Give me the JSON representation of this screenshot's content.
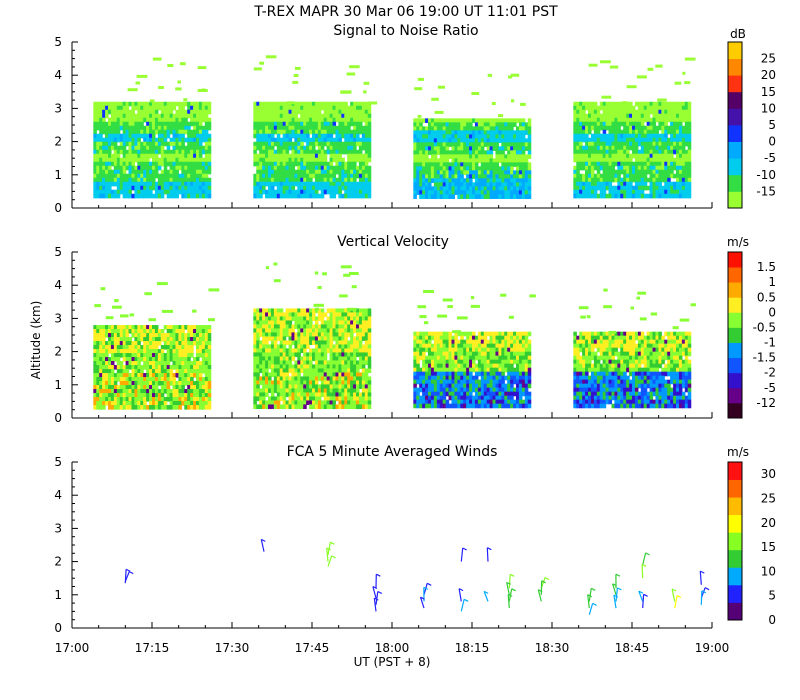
{
  "header": {
    "title": "T-REX   MAPR 30 Mar 06   19:00 UT   11:01   PST"
  },
  "x_axis": {
    "ticks": [
      "17:00",
      "17:15",
      "17:30",
      "17:45",
      "18:00",
      "18:15",
      "18:30",
      "18:45",
      "19:00"
    ],
    "label": "UT  (PST + 8)",
    "range_min": [
      1020,
      1140
    ]
  },
  "y_label": "Altitude (km)",
  "chart_data": [
    {
      "id": "snr",
      "type": "heatmap",
      "title": "Signal to Noise Ratio",
      "unit": "dB",
      "ylim": [
        0,
        5
      ],
      "yticks": [
        "0",
        "1",
        "2",
        "3",
        "4",
        "5"
      ],
      "colorbar": {
        "labels": [
          "-15",
          "-10",
          "-5",
          "0",
          "5",
          "10",
          "15",
          "20",
          "25"
        ],
        "colors": [
          "#99ff33",
          "#33dd44",
          "#00ccee",
          "#00aaff",
          "#1133ff",
          "#4411aa",
          "#550066",
          "#ff3311",
          "#ff8800",
          "#ffcc00"
        ]
      },
      "data_blocks_min": [
        [
          1024,
          1046
        ],
        [
          1054,
          1076
        ],
        [
          1084,
          1106
        ],
        [
          1114,
          1136
        ]
      ]
    },
    {
      "id": "vv",
      "type": "heatmap",
      "title": "Vertical Velocity",
      "unit": "m/s",
      "ylim": [
        0,
        5
      ],
      "yticks": [
        "0",
        "1",
        "2",
        "3",
        "4",
        "5"
      ],
      "colorbar": {
        "labels": [
          "-12",
          "-5",
          "-2",
          "-1.5",
          "-1",
          "-0.5",
          "0",
          "0.5",
          "1",
          "1.5"
        ],
        "colors": [
          "#330022",
          "#660088",
          "#3311cc",
          "#1155ff",
          "#0099ff",
          "#33cc33",
          "#88ff33",
          "#ffee22",
          "#ffaa00",
          "#ff6600",
          "#ff1100"
        ]
      },
      "data_blocks_min": [
        [
          1024,
          1046
        ],
        [
          1054,
          1076
        ],
        [
          1084,
          1106
        ],
        [
          1114,
          1136
        ]
      ]
    },
    {
      "id": "winds",
      "type": "scatter",
      "title": "FCA 5 Minute Averaged Winds",
      "unit": "m/s",
      "ylim": [
        0,
        5
      ],
      "yticks": [
        "0",
        "1",
        "2",
        "3",
        "4",
        "5"
      ],
      "colorbar": {
        "labels": [
          "0",
          "5",
          "10",
          "15",
          "20",
          "25",
          "30"
        ],
        "colors": [
          "#550077",
          "#2222ff",
          "#00aaff",
          "#33cc33",
          "#88ff22",
          "#ffff00",
          "#ffbb00",
          "#ff6600",
          "#ff1111"
        ]
      },
      "barbs": [
        {
          "t": 1030,
          "alt": 1.4,
          "speed": 3
        },
        {
          "t": 1030,
          "alt": 1.35,
          "speed": 3
        },
        {
          "t": 1056,
          "alt": 2.3,
          "speed": 4
        },
        {
          "t": 1068,
          "alt": 2.2,
          "speed": 15
        },
        {
          "t": 1068,
          "alt": 2.0,
          "speed": 14
        },
        {
          "t": 1068,
          "alt": 1.85,
          "speed": 16
        },
        {
          "t": 1077,
          "alt": 1.2,
          "speed": 4
        },
        {
          "t": 1077,
          "alt": 0.9,
          "speed": 3
        },
        {
          "t": 1077,
          "alt": 0.7,
          "speed": 5
        },
        {
          "t": 1077,
          "alt": 0.5,
          "speed": 4
        },
        {
          "t": 1086,
          "alt": 1.0,
          "speed": 5
        },
        {
          "t": 1086,
          "alt": 0.8,
          "speed": 6
        },
        {
          "t": 1086,
          "alt": 0.6,
          "speed": 4
        },
        {
          "t": 1093,
          "alt": 2.0,
          "speed": 4
        },
        {
          "t": 1093,
          "alt": 0.8,
          "speed": 5
        },
        {
          "t": 1093,
          "alt": 0.5,
          "speed": 6
        },
        {
          "t": 1098,
          "alt": 2.0,
          "speed": 5
        },
        {
          "t": 1098,
          "alt": 0.8,
          "speed": 6
        },
        {
          "t": 1102,
          "alt": 1.2,
          "speed": 14
        },
        {
          "t": 1102,
          "alt": 1.0,
          "speed": 12
        },
        {
          "t": 1102,
          "alt": 0.8,
          "speed": 11
        },
        {
          "t": 1102,
          "alt": 0.6,
          "speed": 10
        },
        {
          "t": 1108,
          "alt": 1.2,
          "speed": 15
        },
        {
          "t": 1108,
          "alt": 1.0,
          "speed": 13
        },
        {
          "t": 1108,
          "alt": 0.8,
          "speed": 12
        },
        {
          "t": 1117,
          "alt": 0.8,
          "speed": 13
        },
        {
          "t": 1117,
          "alt": 0.6,
          "speed": 12
        },
        {
          "t": 1117,
          "alt": 0.4,
          "speed": 6
        },
        {
          "t": 1122,
          "alt": 1.2,
          "speed": 12
        },
        {
          "t": 1122,
          "alt": 1.0,
          "speed": 11
        },
        {
          "t": 1122,
          "alt": 0.8,
          "speed": 9
        },
        {
          "t": 1122,
          "alt": 0.6,
          "speed": 8
        },
        {
          "t": 1127,
          "alt": 1.9,
          "speed": 11
        },
        {
          "t": 1127,
          "alt": 1.5,
          "speed": 14
        },
        {
          "t": 1127,
          "alt": 0.8,
          "speed": 6
        },
        {
          "t": 1127,
          "alt": 0.6,
          "speed": 5
        },
        {
          "t": 1133,
          "alt": 0.8,
          "speed": 16
        },
        {
          "t": 1133,
          "alt": 0.6,
          "speed": 17
        },
        {
          "t": 1138,
          "alt": 1.3,
          "speed": 4
        },
        {
          "t": 1138,
          "alt": 0.9,
          "speed": 5
        },
        {
          "t": 1138,
          "alt": 0.7,
          "speed": 6
        }
      ]
    }
  ]
}
